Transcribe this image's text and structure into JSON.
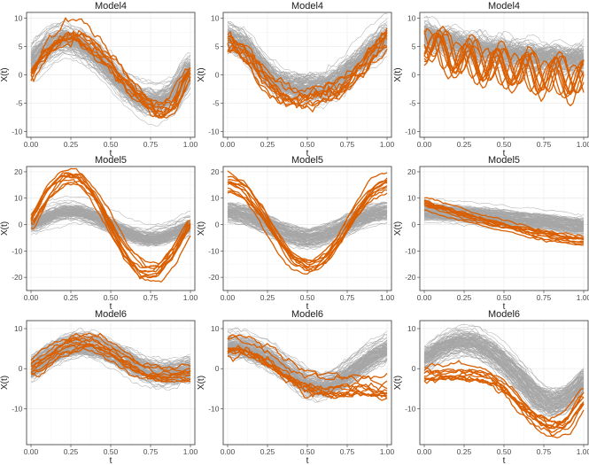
{
  "colors": {
    "background_curve": "#a6a6a6",
    "outlier_curve": "#d95f02",
    "panel_border": "#333333"
  },
  "chart_data": [
    {
      "type": "line",
      "title": "Model4",
      "xlabel": "t",
      "ylabel": "X(t)",
      "xlim": [
        0,
        1
      ],
      "ylim": [
        -11,
        11
      ],
      "xticks": [
        "0.00",
        "0.25",
        "0.50",
        "0.75",
        "1.00"
      ],
      "yticks": [
        -10,
        -5,
        0,
        5,
        10
      ],
      "grid": true,
      "series": [
        {
          "role": "background",
          "count": 100,
          "mean": [
            2.0,
            5.0,
            6.5,
            5.5,
            3.5,
            0.5,
            -2.5,
            -4.5,
            -5.0,
            -3.5,
            1.0
          ],
          "spread": 2.0,
          "jitter": 0.4
        },
        {
          "role": "outlier",
          "count": 10,
          "mean": [
            -0.5,
            3.5,
            6.0,
            6.5,
            4.5,
            1.5,
            -1.5,
            -4.5,
            -6.5,
            -5.5,
            0.5
          ],
          "spread": 1.3,
          "jitter": 0.6
        }
      ]
    },
    {
      "type": "line",
      "title": "Model4",
      "xlabel": "t",
      "ylabel": "X(t)",
      "xlim": [
        0,
        1
      ],
      "ylim": [
        -11,
        11
      ],
      "xticks": [
        "0.00",
        "0.25",
        "0.50",
        "0.75",
        "1.00"
      ],
      "yticks": [
        -10,
        -5,
        0,
        5,
        10
      ],
      "grid": true,
      "series": [
        {
          "role": "background",
          "count": 100,
          "mean": [
            6.5,
            5.0,
            1.5,
            -1.5,
            -2.5,
            -2.5,
            -2.5,
            -1.0,
            1.5,
            4.0,
            6.5
          ],
          "spread": 2.0,
          "jitter": 0.5
        },
        {
          "role": "outlier",
          "count": 10,
          "mean": [
            6.0,
            4.5,
            0.5,
            -2.5,
            -3.5,
            -3.5,
            -3.0,
            -2.0,
            0.5,
            4.0,
            7.0
          ],
          "spread": 2.0,
          "jitter": 0.8
        }
      ]
    },
    {
      "type": "line",
      "title": "Model4",
      "xlabel": "t",
      "ylabel": "X(t)",
      "xlim": [
        0,
        1
      ],
      "ylim": [
        -11,
        11
      ],
      "xticks": [
        "0.00",
        "0.25",
        "0.50",
        "0.75",
        "1.00"
      ],
      "yticks": [
        -10,
        -5,
        0,
        5,
        10
      ],
      "grid": true,
      "series": [
        {
          "role": "background",
          "count": 100,
          "mean": [
            7.0,
            6.2,
            5.5,
            5.0,
            4.5,
            4.0,
            3.6,
            3.2,
            3.0,
            2.8,
            2.7
          ],
          "spread": 2.0,
          "jitter": 0.5,
          "wave": 0.6,
          "wave_cycles": 6
        },
        {
          "role": "outlier",
          "count": 10,
          "mean": [
            5.5,
            4.2,
            3.0,
            2.3,
            1.8,
            1.2,
            0.8,
            0.3,
            -0.2,
            -0.4,
            -0.4
          ],
          "spread": 1.3,
          "jitter": 0.3,
          "wave": 3.0,
          "wave_cycles": 5.5
        }
      ]
    },
    {
      "type": "line",
      "title": "Model5",
      "xlabel": "t",
      "ylabel": "X(t)",
      "xlim": [
        0,
        1
      ],
      "ylim": [
        -25,
        22
      ],
      "xticks": [
        "0.00",
        "0.25",
        "0.50",
        "0.75",
        "1.00"
      ],
      "yticks": [
        -20,
        -10,
        0,
        10,
        20
      ],
      "grid": true,
      "series": [
        {
          "role": "background",
          "count": 100,
          "mean": [
            0.0,
            3.0,
            5.0,
            5.0,
            3.0,
            0.0,
            -3.0,
            -5.0,
            -5.0,
            -3.0,
            0.0
          ],
          "spread": 2.8,
          "jitter": 0.5
        },
        {
          "role": "outlier",
          "count": 10,
          "mean": [
            0.0,
            11.0,
            17.5,
            17.5,
            11.0,
            0.0,
            -11.0,
            -17.5,
            -17.5,
            -11.0,
            0.0
          ],
          "spread": 2.0,
          "jitter": 0.5
        }
      ]
    },
    {
      "type": "line",
      "title": "Model5",
      "xlabel": "t",
      "ylabel": "X(t)",
      "xlim": [
        0,
        1
      ],
      "ylim": [
        -25,
        22
      ],
      "xticks": [
        "0.00",
        "0.25",
        "0.50",
        "0.75",
        "1.00"
      ],
      "yticks": [
        -20,
        -10,
        0,
        10,
        20
      ],
      "grid": true,
      "series": [
        {
          "role": "background",
          "count": 100,
          "mean": [
            5.0,
            4.0,
            1.5,
            -1.5,
            -4.0,
            -5.0,
            -4.0,
            -1.5,
            1.5,
            4.0,
            5.0
          ],
          "spread": 2.8,
          "jitter": 0.5
        },
        {
          "role": "outlier",
          "count": 10,
          "mean": [
            16.0,
            13.0,
            5.0,
            -5.0,
            -13.0,
            -16.0,
            -13.0,
            -5.0,
            5.0,
            13.0,
            16.0
          ],
          "spread": 2.0,
          "jitter": 0.5
        }
      ]
    },
    {
      "type": "line",
      "title": "Model5",
      "xlabel": "t",
      "ylabel": "X(t)",
      "xlim": [
        0,
        1
      ],
      "ylim": [
        -25,
        22
      ],
      "xticks": [
        "0.00",
        "0.25",
        "0.50",
        "0.75",
        "1.00"
      ],
      "yticks": [
        -20,
        -10,
        0,
        10,
        20
      ],
      "grid": true,
      "series": [
        {
          "role": "background",
          "count": 100,
          "mean": [
            5.0,
            4.9,
            4.5,
            4.0,
            3.5,
            2.9,
            2.3,
            1.6,
            1.0,
            0.3,
            -0.3
          ],
          "spread": 2.8,
          "jitter": 0.4
        },
        {
          "role": "outlier",
          "count": 10,
          "mean": [
            9.0,
            7.0,
            5.0,
            3.2,
            1.5,
            0.0,
            -1.5,
            -3.0,
            -4.2,
            -5.3,
            -6.0
          ],
          "spread": 2.0,
          "jitter": 0.4
        }
      ]
    },
    {
      "type": "line",
      "title": "Model6",
      "xlabel": "t",
      "ylabel": "X(t)",
      "xlim": [
        0,
        1
      ],
      "ylim": [
        -19,
        12
      ],
      "xticks": [
        "0.00",
        "0.25",
        "0.50",
        "0.75",
        "1.00"
      ],
      "yticks": [
        -10,
        0,
        10
      ],
      "grid": true,
      "series": [
        {
          "role": "background",
          "count": 100,
          "mean": [
            0.0,
            3.0,
            5.0,
            6.0,
            5.5,
            4.0,
            2.0,
            0.0,
            -1.0,
            -1.0,
            0.0
          ],
          "spread": 2.5,
          "jitter": 0.5
        },
        {
          "role": "outlier",
          "count": 10,
          "mean": [
            1.0,
            4.0,
            6.5,
            7.5,
            7.0,
            5.0,
            2.5,
            0.5,
            -0.5,
            -0.5,
            0.0
          ],
          "spread": 2.5,
          "jitter": 0.5
        }
      ]
    },
    {
      "type": "line",
      "title": "Model6",
      "xlabel": "t",
      "ylabel": "X(t)",
      "xlim": [
        0,
        1
      ],
      "ylim": [
        -19,
        12
      ],
      "xticks": [
        "0.00",
        "0.25",
        "0.50",
        "0.75",
        "1.00"
      ],
      "yticks": [
        -10,
        0,
        10
      ],
      "grid": true,
      "series": [
        {
          "role": "background",
          "count": 100,
          "mean": [
            6.0,
            5.5,
            4.0,
            2.0,
            -1.0,
            -4.0,
            -4.5,
            -3.0,
            0.0,
            3.0,
            5.0
          ],
          "spread": 2.8,
          "jitter": 0.5
        },
        {
          "role": "outlier",
          "count": 10,
          "mean": [
            4.5,
            4.5,
            3.0,
            0.5,
            -2.5,
            -4.5,
            -5.5,
            -5.5,
            -5.0,
            -5.5,
            -6.0
          ],
          "spread": 2.5,
          "jitter": 0.7
        }
      ]
    },
    {
      "type": "line",
      "title": "Model6",
      "xlabel": "t",
      "ylabel": "X(t)",
      "xlim": [
        0,
        1
      ],
      "ylim": [
        -19,
        12
      ],
      "xticks": [
        "0.00",
        "0.25",
        "0.50",
        "0.75",
        "1.00"
      ],
      "yticks": [
        -10,
        0,
        10
      ],
      "grid": true,
      "series": [
        {
          "role": "background",
          "count": 100,
          "mean": [
            2.0,
            5.0,
            6.5,
            6.5,
            4.5,
            1.5,
            -2.5,
            -7.0,
            -9.0,
            -7.5,
            -3.0
          ],
          "spread": 2.5,
          "jitter": 0.5
        },
        {
          "role": "outlier",
          "count": 10,
          "mean": [
            -2.0,
            -1.5,
            -1.5,
            -1.5,
            -2.5,
            -5.0,
            -9.0,
            -13.0,
            -15.0,
            -13.0,
            -7.0
          ],
          "spread": 2.5,
          "jitter": 0.5
        }
      ]
    }
  ]
}
